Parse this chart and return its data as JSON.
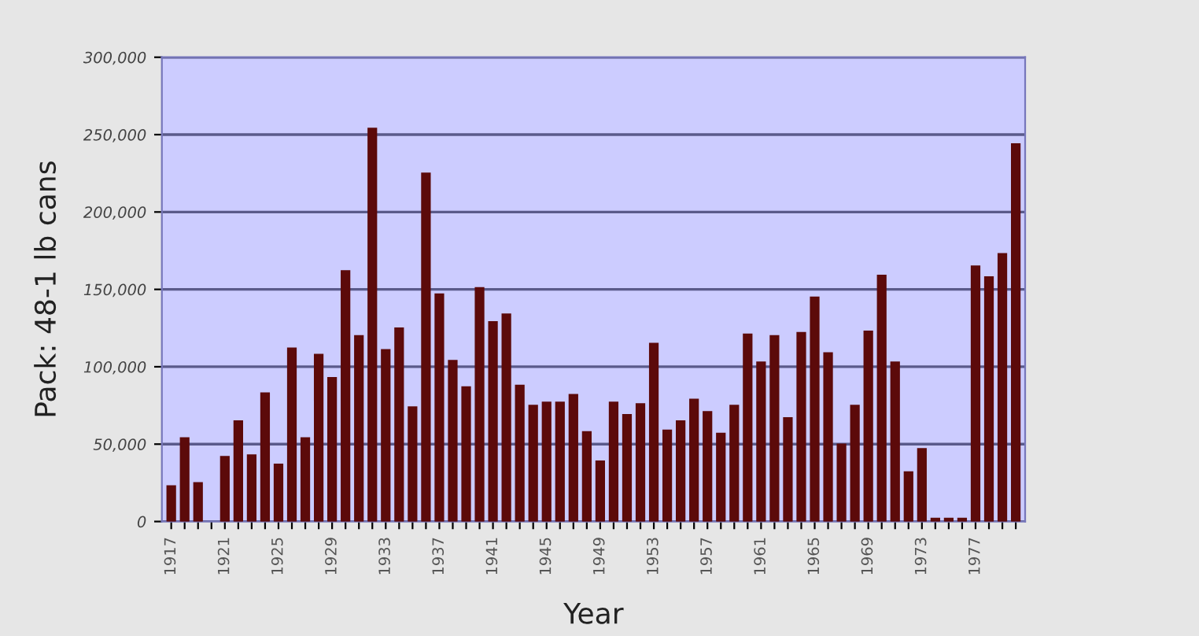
{
  "chart_data": {
    "type": "bar",
    "xlabel": "Year",
    "ylabel": "Pack: 48-1 lb cans",
    "categories": [
      "1917",
      null,
      null,
      null,
      "1921",
      null,
      null,
      null,
      "1925",
      null,
      null,
      null,
      "1929",
      null,
      null,
      null,
      "1933",
      null,
      null,
      null,
      "1937",
      null,
      null,
      null,
      "1941",
      null,
      null,
      null,
      "1945",
      null,
      null,
      null,
      "1949",
      null,
      null,
      null,
      "1953",
      null,
      null,
      null,
      "1957",
      null,
      null,
      null,
      "1961",
      null,
      null,
      null,
      "1965",
      null,
      null,
      null,
      "1969",
      null,
      null,
      null,
      "1973",
      null,
      null,
      null,
      "1977",
      null,
      null,
      null
    ],
    "values": [
      23000,
      54000,
      25000,
      null,
      42000,
      65000,
      43000,
      83000,
      37000,
      112000,
      54000,
      108000,
      93000,
      162000,
      120000,
      254000,
      111000,
      125000,
      74000,
      225000,
      147000,
      104000,
      87000,
      151000,
      129000,
      134000,
      88000,
      75000,
      77000,
      77000,
      82000,
      58000,
      39000,
      77000,
      69000,
      76000,
      115000,
      59000,
      65000,
      79000,
      71000,
      57000,
      75000,
      121000,
      103000,
      120000,
      67000,
      122000,
      145000,
      109000,
      50000,
      75000,
      123000,
      159000,
      103000,
      32000,
      47000,
      2000,
      2000,
      2000,
      165000,
      158000,
      173000,
      244000
    ],
    "color": "#5c0a0a",
    "ylim": [
      0,
      300000
    ],
    "yticks": [
      {
        "value": 0,
        "label": "0"
      },
      {
        "value": 50000,
        "label": "50,000"
      },
      {
        "value": 100000,
        "label": "100,000"
      },
      {
        "value": 150000,
        "label": "150,000"
      },
      {
        "value": 200000,
        "label": "200,000"
      },
      {
        "value": 250000,
        "label": "250,000"
      },
      {
        "value": 300000,
        "label": "300,000"
      }
    ],
    "grid": "y",
    "legend": false
  }
}
